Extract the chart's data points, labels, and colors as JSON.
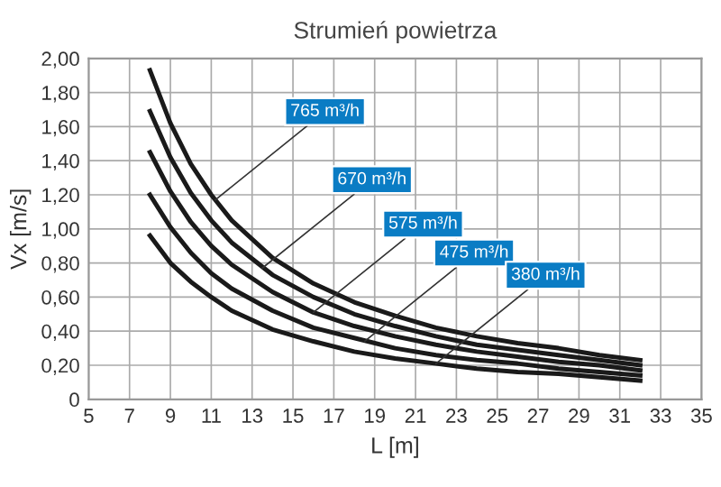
{
  "chart_data": {
    "type": "line",
    "title": "Strumień powietrza",
    "xlabel": "L [m]",
    "ylabel": "Vx [m/s]",
    "x": [
      8,
      9,
      10,
      11,
      12,
      14,
      16,
      18,
      20,
      22,
      24,
      26,
      28,
      30,
      32
    ],
    "series": [
      {
        "color": "#1a1a1a",
        "values": [
          1.93,
          1.62,
          1.38,
          1.2,
          1.05,
          0.83,
          0.68,
          0.57,
          0.49,
          0.42,
          0.37,
          0.33,
          0.3,
          0.26,
          0.23
        ]
      },
      {
        "color": "#1a1a1a",
        "values": [
          1.69,
          1.42,
          1.21,
          1.05,
          0.92,
          0.73,
          0.6,
          0.5,
          0.43,
          0.37,
          0.32,
          0.29,
          0.26,
          0.23,
          0.2
        ]
      },
      {
        "color": "#1a1a1a",
        "values": [
          1.45,
          1.22,
          1.04,
          0.9,
          0.79,
          0.63,
          0.51,
          0.43,
          0.37,
          0.32,
          0.28,
          0.25,
          0.22,
          0.2,
          0.17
        ]
      },
      {
        "color": "#1a1a1a",
        "values": [
          1.2,
          1.01,
          0.86,
          0.74,
          0.65,
          0.52,
          0.42,
          0.36,
          0.3,
          0.26,
          0.23,
          0.21,
          0.18,
          0.16,
          0.14
        ]
      },
      {
        "color": "#1a1a1a",
        "values": [
          0.96,
          0.8,
          0.69,
          0.6,
          0.52,
          0.41,
          0.34,
          0.28,
          0.24,
          0.21,
          0.18,
          0.16,
          0.15,
          0.13,
          0.11
        ]
      }
    ],
    "annotations": [
      {
        "text": "765 m³/h",
        "x": 11.2,
        "y": 1.17
      },
      {
        "text": "670 m³/h",
        "x": 13.5,
        "y": 0.77
      },
      {
        "text": "575 m³/h",
        "x": 16,
        "y": 0.51
      },
      {
        "text": "475 m³/h",
        "x": 18.5,
        "y": 0.34
      },
      {
        "text": "380 m³/h",
        "x": 22,
        "y": 0.21
      }
    ],
    "xlim": [
      5,
      35
    ],
    "xticks": [
      5,
      7,
      9,
      11,
      13,
      15,
      17,
      19,
      21,
      23,
      25,
      27,
      29,
      31,
      33,
      35
    ],
    "ylim": [
      0,
      2
    ],
    "yticks": [
      0,
      {
        "value": 0.2,
        "label": "0,20"
      },
      {
        "value": 0.4,
        "label": "0,40"
      },
      {
        "value": 0.6,
        "label": "0,60"
      },
      {
        "value": 0.8,
        "label": "0,80"
      },
      {
        "value": 1.0,
        "label": "1,00"
      },
      {
        "value": 1.2,
        "label": "1,20"
      },
      {
        "value": 1.4,
        "label": "1,40"
      },
      {
        "value": 1.6,
        "label": "1,60"
      },
      {
        "value": 1.8,
        "label": "1,80"
      },
      {
        "value": 2.0,
        "label": "2,00"
      }
    ],
    "grid": true,
    "legend": false,
    "marker": "none",
    "line_style": "solid"
  }
}
